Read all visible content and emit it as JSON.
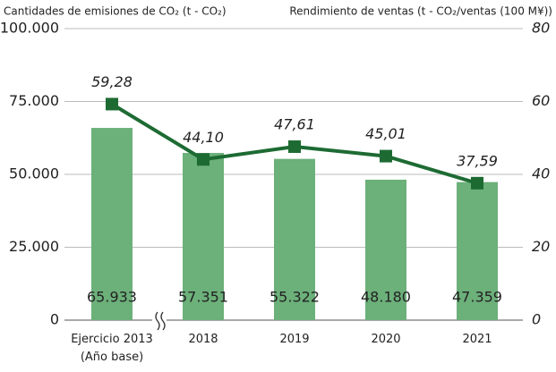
{
  "chart_data": {
    "type": "bar",
    "y_label": "Cantidades de emisiones de CO₂ (t - CO₂)",
    "y2_label": "Rendimiento de ventas (t - CO₂/ventas (100 M¥))",
    "categories": [
      "Ejercicio 2013 (Año base)",
      "2018",
      "2019",
      "2020",
      "2021"
    ],
    "series": [
      {
        "type": "bar",
        "color": "#6cb07a",
        "values": [
          65933,
          57351,
          55322,
          48180,
          47359
        ],
        "value_labels": [
          "65.933",
          "57.351",
          "55.322",
          "48.180",
          "47.359"
        ]
      },
      {
        "type": "line",
        "axis": "y2",
        "color": "#1d6b33",
        "values": [
          59.28,
          44.1,
          47.61,
          45.01,
          37.59
        ],
        "value_labels": [
          "59,28",
          "44,10",
          "47,61",
          "45,01",
          "37,59"
        ]
      }
    ],
    "ylim": [
      0,
      100000
    ],
    "yticks": [
      0,
      {
        "value": 25000,
        "label": "25.000"
      },
      {
        "value": 50000,
        "label": "50.000"
      },
      {
        "value": 75000,
        "label": "75.000"
      },
      {
        "value": 100000,
        "label": "100.000"
      }
    ],
    "y2lim": [
      0,
      80
    ],
    "y2ticks": [
      0,
      20,
      40,
      60,
      80
    ],
    "grid": true
  }
}
